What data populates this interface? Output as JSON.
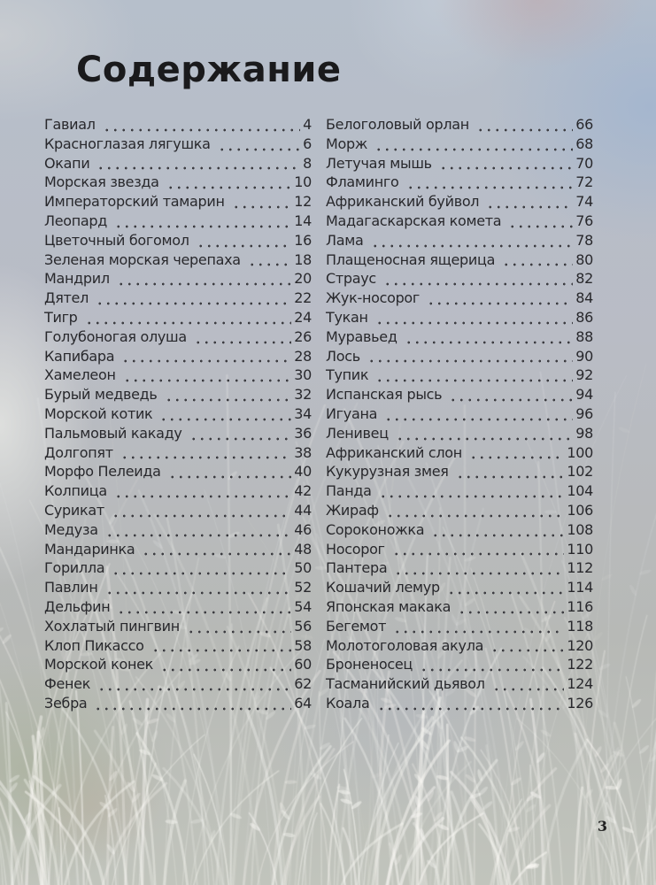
{
  "page": {
    "title": "Содержание",
    "page_number": "3"
  },
  "colors": {
    "text": "#28282c",
    "title": "#1a1a1c",
    "background_top": "#b6bfcb",
    "background_bottom": "#c1c4bc",
    "grass_silhouette": "#faf9f5"
  },
  "toc": {
    "left": [
      {
        "name": "Гавиал",
        "page": "4"
      },
      {
        "name": "Красноглазая лягушка",
        "page": "6"
      },
      {
        "name": "Окапи",
        "page": "8"
      },
      {
        "name": "Морская звезда",
        "page": "10"
      },
      {
        "name": "Императорский тамарин",
        "page": "12"
      },
      {
        "name": "Леопард",
        "page": "14"
      },
      {
        "name": "Цветочный богомол",
        "page": "16"
      },
      {
        "name": "Зеленая морская черепаха",
        "page": "18"
      },
      {
        "name": "Мандрил",
        "page": "20"
      },
      {
        "name": "Дятел",
        "page": "22"
      },
      {
        "name": "Тигр",
        "page": "24"
      },
      {
        "name": "Голубоногая олуша",
        "page": "26"
      },
      {
        "name": "Капибара",
        "page": "28"
      },
      {
        "name": "Хамелеон",
        "page": "30"
      },
      {
        "name": "Бурый медведь",
        "page": "32"
      },
      {
        "name": "Морской котик",
        "page": "34"
      },
      {
        "name": "Пальмовый какаду",
        "page": "36"
      },
      {
        "name": "Долгопят",
        "page": "38"
      },
      {
        "name": "Морфо Пелеида",
        "page": "40"
      },
      {
        "name": "Колпица",
        "page": "42"
      },
      {
        "name": "Сурикат",
        "page": "44"
      },
      {
        "name": "Медуза",
        "page": "46"
      },
      {
        "name": "Мандаринка",
        "page": "48"
      },
      {
        "name": "Горилла",
        "page": "50"
      },
      {
        "name": "Павлин",
        "page": "52"
      },
      {
        "name": "Дельфин",
        "page": "54"
      },
      {
        "name": "Хохлатый пингвин",
        "page": "56"
      },
      {
        "name": "Клоп Пикассо",
        "page": "58"
      },
      {
        "name": "Морской конек",
        "page": "60"
      },
      {
        "name": "Фенек",
        "page": "62"
      },
      {
        "name": "Зебра",
        "page": "64"
      }
    ],
    "right": [
      {
        "name": "Белоголовый орлан",
        "page": "66"
      },
      {
        "name": "Морж",
        "page": "68"
      },
      {
        "name": "Летучая мышь",
        "page": "70"
      },
      {
        "name": "Фламинго",
        "page": "72"
      },
      {
        "name": "Африканский буйвол",
        "page": "74"
      },
      {
        "name": "Мадагаскарская комета",
        "page": "76"
      },
      {
        "name": "Лама",
        "page": "78"
      },
      {
        "name": "Плащеносная ящерица",
        "page": "80"
      },
      {
        "name": "Страус",
        "page": "82"
      },
      {
        "name": "Жук-носорог",
        "page": "84"
      },
      {
        "name": "Тукан",
        "page": "86"
      },
      {
        "name": "Муравьед",
        "page": "88"
      },
      {
        "name": "Лось",
        "page": "90"
      },
      {
        "name": "Тупик",
        "page": "92"
      },
      {
        "name": "Испанская рысь",
        "page": "94"
      },
      {
        "name": "Игуана",
        "page": "96"
      },
      {
        "name": "Ленивец",
        "page": "98"
      },
      {
        "name": "Африканский слон",
        "page": "100"
      },
      {
        "name": "Кукурузная змея",
        "page": "102"
      },
      {
        "name": "Панда",
        "page": "104"
      },
      {
        "name": "Жираф",
        "page": "106"
      },
      {
        "name": "Сороконожка",
        "page": "108"
      },
      {
        "name": "Носорог",
        "page": "110"
      },
      {
        "name": "Пантера",
        "page": "112"
      },
      {
        "name": "Кошачий лемур",
        "page": "114"
      },
      {
        "name": "Японская макака",
        "page": "116"
      },
      {
        "name": "Бегемот",
        "page": "118"
      },
      {
        "name": "Молотоголовая акула",
        "page": "120"
      },
      {
        "name": "Броненосец",
        "page": "122"
      },
      {
        "name": "Тасманийский дьявол",
        "page": "124"
      },
      {
        "name": "Коала",
        "page": "126"
      }
    ]
  }
}
